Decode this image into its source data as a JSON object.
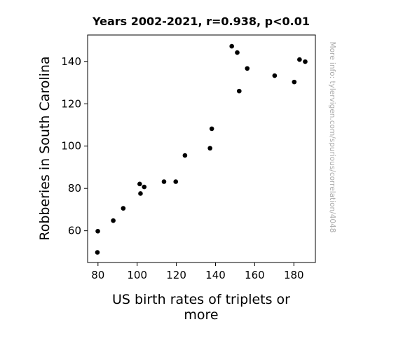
{
  "chart_data": {
    "type": "scatter",
    "title": "Years 2002-2021, r=0.938, p<0.01",
    "xlabel_lines": [
      "US birth rates of triplets or",
      "more"
    ],
    "ylabel": "Robberies in South Carolina",
    "xlim": [
      74.7,
      191
    ],
    "ylim": [
      45,
      152.5
    ],
    "xticks": [
      80,
      100,
      120,
      140,
      160,
      180
    ],
    "yticks": [
      60,
      80,
      100,
      120,
      140
    ],
    "grid": false,
    "marker_color": "#000000",
    "points": [
      {
        "x": 79.7,
        "y": 49.8
      },
      {
        "x": 79.9,
        "y": 59.8
      },
      {
        "x": 87.8,
        "y": 64.8
      },
      {
        "x": 92.9,
        "y": 70.6
      },
      {
        "x": 101.3,
        "y": 82.1
      },
      {
        "x": 101.7,
        "y": 77.6
      },
      {
        "x": 103.6,
        "y": 80.7
      },
      {
        "x": 113.7,
        "y": 83.2
      },
      {
        "x": 119.7,
        "y": 83.2
      },
      {
        "x": 124.4,
        "y": 95.6
      },
      {
        "x": 137.2,
        "y": 99.0
      },
      {
        "x": 138.1,
        "y": 108.2
      },
      {
        "x": 148.3,
        "y": 147.2
      },
      {
        "x": 151.1,
        "y": 144.2
      },
      {
        "x": 152.1,
        "y": 126.0
      },
      {
        "x": 156.2,
        "y": 136.7
      },
      {
        "x": 170.2,
        "y": 133.3
      },
      {
        "x": 180.2,
        "y": 130.3
      },
      {
        "x": 182.9,
        "y": 140.9
      },
      {
        "x": 185.8,
        "y": 139.9
      }
    ]
  },
  "side_note": "More info: tylervigen.com/spurious/correlation/4048"
}
